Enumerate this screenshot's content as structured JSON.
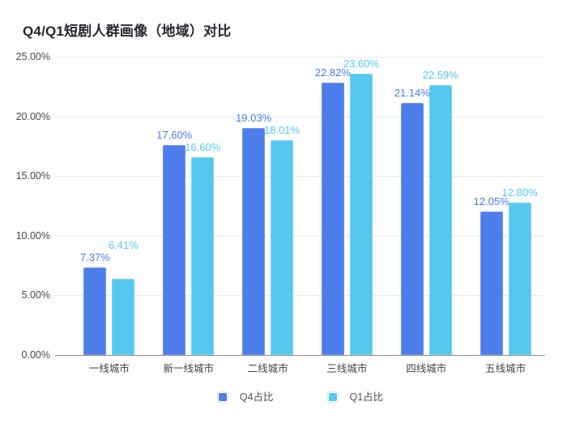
{
  "title": "Q4/Q1短剧人群画像（地域）对比",
  "colors": {
    "q4_bar": "#4E7DEC",
    "q1_bar": "#54C8EF",
    "q4_label": "#4A7BEE",
    "q1_label": "#55C9F1",
    "gridline": "#E8E9EC",
    "axis_line": "#8A8C92",
    "axis_text": "#45494F",
    "title_text": "#25282D",
    "background": "#FFFFFF"
  },
  "chart_data": {
    "type": "bar",
    "title": "Q4/Q1短剧人群画像（地域）对比",
    "categories": [
      "一线城市",
      "新一线城市",
      "二线城市",
      "三线城市",
      "四线城市",
      "五线城市"
    ],
    "series": [
      {
        "name": "Q4占比",
        "color": "#4E7DEC",
        "values": [
          7.37,
          17.6,
          19.03,
          22.82,
          21.14,
          12.05
        ],
        "labels": [
          "7.37%",
          "17.60%",
          "19.03%",
          "22.82%",
          "21.14%",
          "12.05%"
        ]
      },
      {
        "name": "Q1占比",
        "color": "#54C8EF",
        "values": [
          6.41,
          16.6,
          18.01,
          23.6,
          22.59,
          12.8
        ],
        "labels": [
          "6.41%",
          "16.60%",
          "18.01%",
          "23.60%",
          "22.59%",
          "12.80%"
        ]
      }
    ],
    "xlabel": "",
    "ylabel": "",
    "ylim": [
      0,
      25
    ],
    "y_ticks": [
      "0.00%",
      "5.00%",
      "10.00%",
      "15.00%",
      "20.00%",
      "25.00%"
    ],
    "y_tick_values": [
      0,
      5,
      10,
      15,
      20,
      25
    ],
    "grid": true,
    "legend_position": "bottom",
    "q1_label_raised": [
      true,
      false,
      false,
      false,
      false,
      false
    ]
  },
  "legend": {
    "items": [
      {
        "label": "Q4占比",
        "color": "#4E7DEC"
      },
      {
        "label": "Q1占比",
        "color": "#54C8EF"
      }
    ]
  }
}
